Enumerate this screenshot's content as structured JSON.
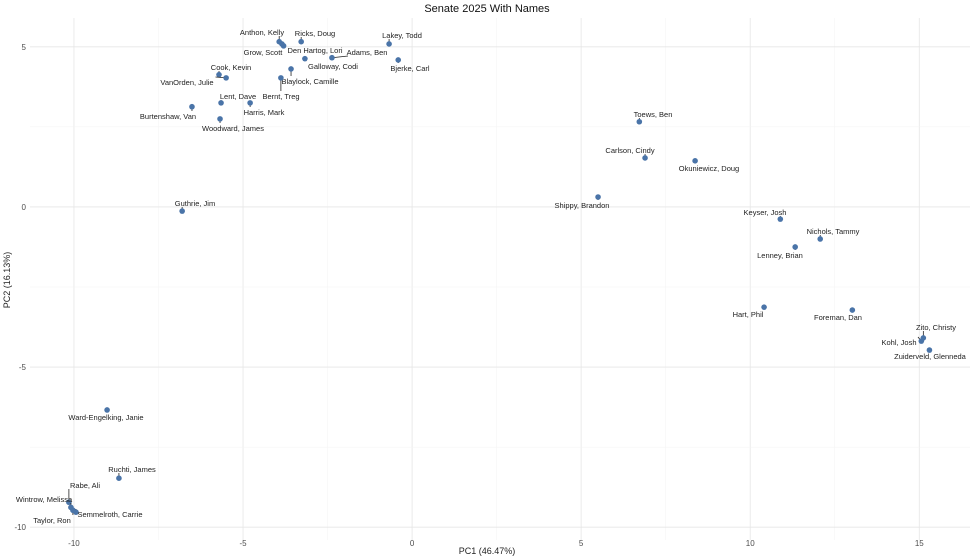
{
  "chart_data": {
    "type": "scatter",
    "title": "Senate 2025 With Names",
    "xlabel": "PC1 (46.47%)",
    "ylabel": "PC2 (16.13%)",
    "xlim": [
      -11.3,
      16.5
    ],
    "ylim": [
      -10.4,
      5.9
    ],
    "xticks": [
      -10,
      -5,
      0,
      5,
      10,
      15
    ],
    "yticks": [
      -10,
      -5,
      0,
      5
    ],
    "grid": true,
    "point_color": "#4a74a8",
    "points": [
      {
        "name": "Anthon, Kelly",
        "x": -3.93,
        "y": 5.16
      },
      {
        "name": "Ricks, Doug",
        "x": -3.28,
        "y": 5.16
      },
      {
        "name": "Grow, Scott",
        "x": -3.85,
        "y": 5.09
      },
      {
        "name": "Den Hartog, Lori",
        "x": -3.8,
        "y": 5.03
      },
      {
        "name": "Lakey, Todd",
        "x": -0.68,
        "y": 5.09
      },
      {
        "name": "Adams, Ben",
        "x": -2.37,
        "y": 4.66
      },
      {
        "name": "Bjerke, Carl",
        "x": -0.41,
        "y": 4.59
      },
      {
        "name": "Galloway, Codi",
        "x": -3.17,
        "y": 4.63
      },
      {
        "name": "Blaylock, Camille",
        "x": -3.58,
        "y": 4.31
      },
      {
        "name": "Bernt, Treg",
        "x": -3.88,
        "y": 4.03
      },
      {
        "name": "Cook, Kevin",
        "x": -5.71,
        "y": 4.13
      },
      {
        "name": "VanOrden, Julie",
        "x": -5.5,
        "y": 4.03
      },
      {
        "name": "Lent, Dave",
        "x": -5.65,
        "y": 3.25
      },
      {
        "name": "Harris, Mark",
        "x": -4.79,
        "y": 3.25
      },
      {
        "name": "Burtenshaw, Van",
        "x": -6.51,
        "y": 3.13
      },
      {
        "name": "Woodward, James",
        "x": -5.68,
        "y": 2.75
      },
      {
        "name": "Guthrie, Jim",
        "x": -6.8,
        "y": -0.13
      },
      {
        "name": "Ward-Engelking, Janie",
        "x": -9.02,
        "y": -6.34
      },
      {
        "name": "Ruchti, James",
        "x": -8.67,
        "y": -8.47
      },
      {
        "name": "Rabe, Ali",
        "x": -10.15,
        "y": -9.22
      },
      {
        "name": "Wintrow, Melissa",
        "x": -10.09,
        "y": -9.38
      },
      {
        "name": "Taylor, Ron",
        "x": -10.03,
        "y": -9.47
      },
      {
        "name": "Semmelroth, Carrie",
        "x": -9.94,
        "y": -9.53
      },
      {
        "name": "Toews, Ben",
        "x": 6.72,
        "y": 2.66
      },
      {
        "name": "Carlson, Cindy",
        "x": 6.89,
        "y": 1.53
      },
      {
        "name": "Okuniewicz, Doug",
        "x": 8.37,
        "y": 1.44
      },
      {
        "name": "Shippy, Brandon",
        "x": 5.5,
        "y": 0.31
      },
      {
        "name": "Keyser, Josh",
        "x": 10.89,
        "y": -0.38
      },
      {
        "name": "Nichols, Tammy",
        "x": 12.07,
        "y": -1.0
      },
      {
        "name": "Lenney, Brian",
        "x": 11.33,
        "y": -1.25
      },
      {
        "name": "Hart, Phil",
        "x": 10.41,
        "y": -3.13
      },
      {
        "name": "Foreman, Dan",
        "x": 13.02,
        "y": -3.22
      },
      {
        "name": "Zito, Christy",
        "x": 15.12,
        "y": -4.09
      },
      {
        "name": "Kohl, Josh",
        "x": 15.06,
        "y": -4.19
      },
      {
        "name": "Zuiderveld, Glenneda",
        "x": 15.3,
        "y": -4.47
      }
    ]
  }
}
